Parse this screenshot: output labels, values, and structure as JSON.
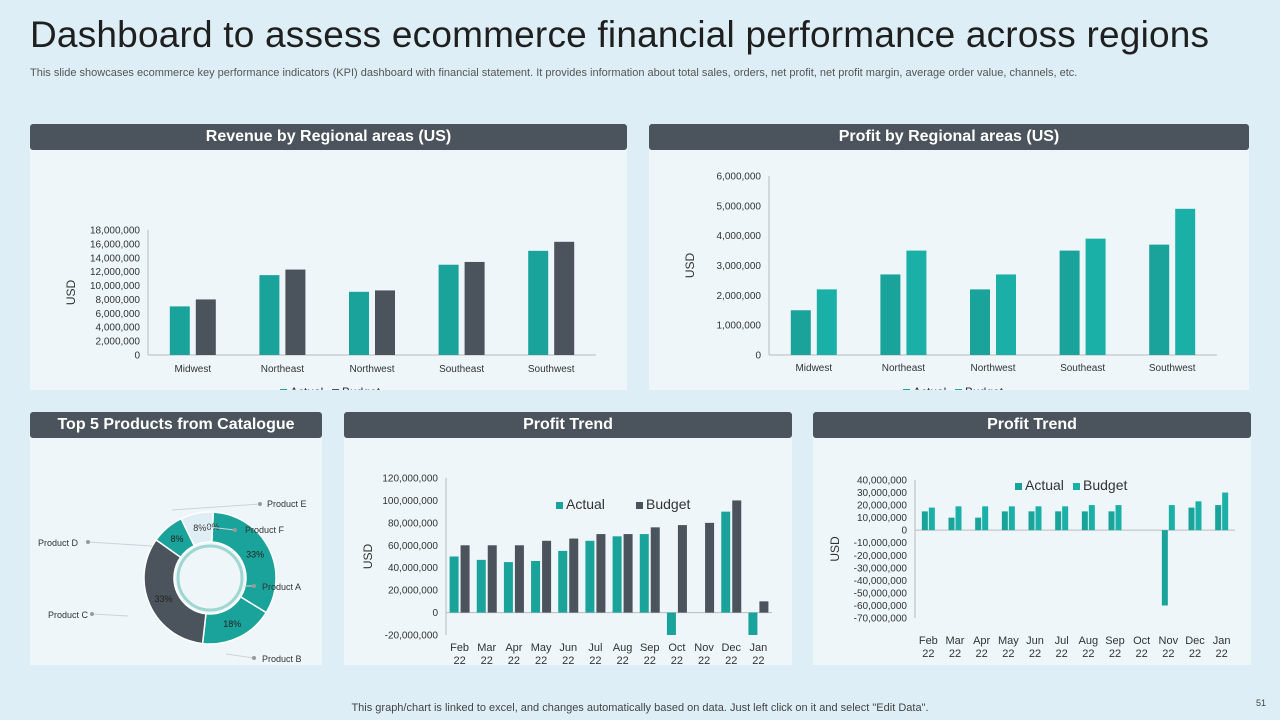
{
  "title": "Dashboard to assess ecommerce financial performance across regions",
  "subtitle": "This slide showcases ecommerce key performance indicators (KPI) dashboard with financial statement. It provides information about total sales, orders, net profit, net profit margin, average order value, channels, etc.",
  "footer": "This graph/chart is linked to excel,  and changes automatically based on data. Just left click on it and select \"Edit Data\".",
  "page_number": "51",
  "colors": {
    "actual": "#1aa39b",
    "budget": "#4b535c",
    "budget_teal": "#1ab0a8",
    "header": "#4b535c"
  },
  "chart_data": [
    {
      "id": "revenue",
      "type": "bar",
      "title": "Revenue by Regional areas (US)",
      "ylabel": "USD",
      "categories": [
        "Midwest",
        "Northeast",
        "Northwest",
        "Southeast",
        "Southwest"
      ],
      "series": [
        {
          "name": "Actual",
          "values": [
            7000000,
            11500000,
            9100000,
            13000000,
            15000000
          ]
        },
        {
          "name": "Budget",
          "values": [
            8000000,
            12300000,
            9300000,
            13400000,
            16300000
          ]
        }
      ],
      "ylim": [
        0,
        18000000
      ],
      "yticks": [
        0,
        2000000,
        4000000,
        6000000,
        8000000,
        10000000,
        12000000,
        14000000,
        16000000,
        18000000
      ],
      "ytick_labels": [
        "0",
        "2,000,000",
        "4,000,000",
        "6,000,000",
        "8,000,000",
        "10,000,000",
        "12,000,000",
        "14,000,000",
        "16,000,000",
        "18,000,000"
      ],
      "legend": "bottom"
    },
    {
      "id": "profit",
      "type": "bar",
      "title": "Profit by Regional areas (US)",
      "ylabel": "USD",
      "categories": [
        "Midwest",
        "Northeast",
        "Northwest",
        "Southeast",
        "Southwest"
      ],
      "series": [
        {
          "name": "Actual",
          "values": [
            1500000,
            2700000,
            2200000,
            3500000,
            3700000
          ]
        },
        {
          "name": "Budget",
          "values": [
            2200000,
            3500000,
            2700000,
            3900000,
            4900000
          ]
        }
      ],
      "ylim": [
        0,
        6000000
      ],
      "yticks": [
        0,
        1000000,
        2000000,
        3000000,
        4000000,
        5000000,
        6000000
      ],
      "ytick_labels": [
        "0",
        "1,000,000",
        "2,000,000",
        "3,000,000",
        "4,000,000",
        "5,000,000",
        "6,000,000"
      ],
      "legend": "bottom"
    },
    {
      "id": "products",
      "type": "pie",
      "title": "Top 5 Products from Catalogue",
      "labels": [
        "Product A",
        "Product B",
        "Product C",
        "Product D",
        "Product E",
        "Product F"
      ],
      "values": [
        33,
        18,
        33,
        8,
        8,
        0
      ],
      "value_labels": [
        "33%",
        "18%",
        "33%",
        "8%",
        "8%",
        "0%"
      ]
    },
    {
      "id": "trend1",
      "type": "bar",
      "title": "Profit Trend",
      "ylabel": "USD",
      "categories": [
        "Feb 22",
        "Mar 22",
        "Apr 22",
        "May 22",
        "Jun 22",
        "Jul 22",
        "Aug 22",
        "Sep 22",
        "Oct 22",
        "Nov 22",
        "Dec 22",
        "Jan 22"
      ],
      "series": [
        {
          "name": "Actual",
          "values": [
            50000000,
            47000000,
            45000000,
            46000000,
            55000000,
            64000000,
            68000000,
            70000000,
            -20000000,
            0,
            90000000,
            -20000000
          ]
        },
        {
          "name": "Budget",
          "values": [
            60000000,
            60000000,
            60000000,
            64000000,
            66000000,
            70000000,
            70000000,
            76000000,
            78000000,
            80000000,
            100000000,
            10000000
          ]
        }
      ],
      "ylim": [
        -20000000,
        120000000
      ],
      "yticks": [
        -20000000,
        0,
        20000000,
        40000000,
        60000000,
        80000000,
        100000000,
        120000000
      ],
      "ytick_labels": [
        "-20,000,000",
        "0",
        "20,000,000",
        "40,000,000",
        "60,000,000",
        "80,000,000",
        "100,000,000",
        "120,000,000"
      ],
      "legend": "top"
    },
    {
      "id": "trend2",
      "type": "bar",
      "title": "Profit Trend",
      "ylabel": "USD",
      "categories": [
        "Feb 22",
        "Mar 22",
        "Apr 22",
        "May 22",
        "Jun 22",
        "Jul 22",
        "Aug 22",
        "Sep 22",
        "Oct 22",
        "Nov 22",
        "Dec 22",
        "Jan 22"
      ],
      "series": [
        {
          "name": "Actual",
          "values": [
            15000000,
            10000000,
            10000000,
            15000000,
            15000000,
            15000000,
            15000000,
            15000000,
            0,
            -60000000,
            18000000,
            20000000
          ]
        },
        {
          "name": "Budget",
          "values": [
            18000000,
            19000000,
            19000000,
            19000000,
            19000000,
            19000000,
            20000000,
            20000000,
            0,
            20000000,
            23000000,
            30000000
          ]
        }
      ],
      "ylim": [
        -70000000,
        40000000
      ],
      "yticks": [
        -70000000,
        -60000000,
        -50000000,
        -40000000,
        -30000000,
        -20000000,
        -10000000,
        0,
        10000000,
        20000000,
        30000000,
        40000000
      ],
      "ytick_labels": [
        "-70,000,000",
        "-60,000,000",
        "-50,000,000",
        "-40,000,000",
        "-30,000,000",
        "-20,000,000",
        "-10,000,000",
        "0",
        "10,000,000",
        "20,000,000",
        "30,000,000",
        "40,000,000"
      ],
      "legend": "top"
    }
  ]
}
